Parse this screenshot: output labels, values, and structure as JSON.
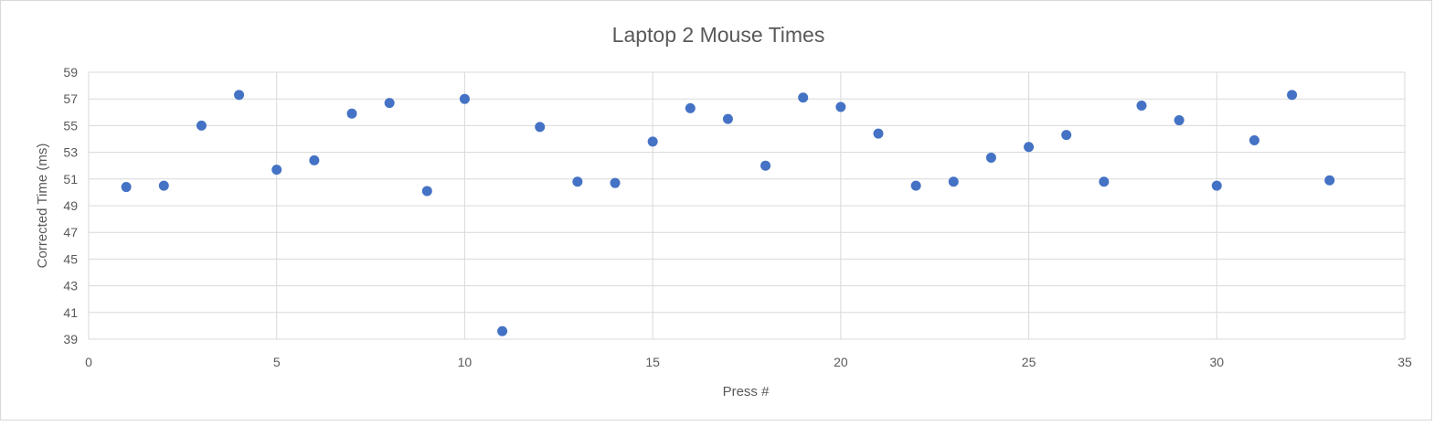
{
  "chart_data": {
    "type": "scatter",
    "title": "Laptop 2 Mouse Times",
    "xlabel": "Press #",
    "ylabel": "Corrected Time (ms)",
    "xlim": [
      0,
      35
    ],
    "ylim": [
      39,
      59
    ],
    "xticks": [
      0,
      5,
      10,
      15,
      20,
      25,
      30,
      35
    ],
    "yticks": [
      39,
      41,
      43,
      45,
      47,
      49,
      51,
      53,
      55,
      57,
      59
    ],
    "grid": true,
    "legend": "none",
    "marker_color": "#4472c4",
    "series": [
      {
        "x": [
          1,
          2,
          3,
          4,
          5,
          6,
          7,
          8,
          9,
          10,
          11,
          12,
          13,
          14,
          15,
          16,
          17,
          18,
          19,
          20,
          21,
          22,
          23,
          24,
          25,
          26,
          27,
          28,
          29,
          30,
          31,
          32,
          33
        ],
        "y": [
          50.4,
          50.5,
          55.0,
          57.3,
          51.7,
          52.4,
          55.9,
          56.7,
          50.1,
          57.0,
          39.6,
          54.9,
          50.8,
          50.7,
          53.8,
          56.3,
          55.5,
          52.0,
          57.1,
          56.4,
          54.4,
          50.5,
          50.8,
          52.6,
          53.4,
          54.3,
          50.8,
          56.5,
          55.4,
          50.5,
          53.9,
          57.3,
          50.9
        ]
      }
    ]
  }
}
